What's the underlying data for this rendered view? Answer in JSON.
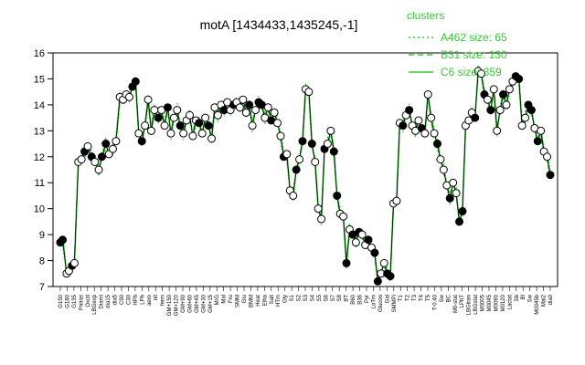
{
  "chart_data": {
    "type": "line",
    "title": "motA [1434433,1435245,-1]",
    "xlabel": "",
    "ylabel": "",
    "ylim": [
      7,
      16
    ],
    "yticks": [
      7,
      8,
      9,
      10,
      11,
      12,
      13,
      14,
      15,
      16
    ],
    "colors": {
      "series": "#33cc33",
      "points_open": "#ffffff",
      "points_filled": "#000000",
      "axis": "#000000"
    },
    "legend": {
      "title": "clusters",
      "position": "top-right",
      "entries": [
        {
          "label": "A462 size: 65",
          "style": "dotted"
        },
        {
          "label": "B31 size: 130",
          "style": "dashed"
        },
        {
          "label": "C6 size: 359",
          "style": "solid"
        }
      ]
    },
    "x_tick_labels": [
      "G150",
      "G180",
      "G135",
      "Pairas",
      "Oxctl",
      "LBGexp",
      "Diami",
      "dia15",
      "dia5",
      "C90",
      "C30",
      "HPh",
      "LPh",
      "aero",
      "nit",
      "ferm",
      "GM+150",
      "GM+120",
      "GM+90",
      "GM+60",
      "GM+45",
      "GM+30",
      "GM+15",
      "M/G",
      "Mal",
      "Fru",
      "SMM",
      "Glu",
      "BMM",
      "Heat",
      "Etha",
      "Salt",
      "HTm",
      "Gly",
      "S1",
      "S2",
      "S3",
      "S4",
      "S5",
      "S6",
      "S7",
      "S8",
      "BT",
      "B60",
      "B36",
      "Pyr",
      "LoTm",
      "Glucon",
      "Gal",
      "SMMPi",
      "T1",
      "T2",
      "T3",
      "T4",
      "T5",
      "T-0.40",
      "Sw",
      "BC",
      "M0-stat",
      "LPhT",
      "LBGtran",
      "LBGstat",
      "M0005",
      "M0045",
      "M0090",
      "M0120",
      "Lactat",
      "Sb",
      "Bl",
      "Sw",
      "M0045b",
      "Mal2",
      "dia0"
    ],
    "points": [
      {
        "x": 0,
        "y": 8.7,
        "filled": true
      },
      {
        "x": 0.3,
        "y": 8.8,
        "filled": true
      },
      {
        "x": 0.8,
        "y": 7.5,
        "filled": false
      },
      {
        "x": 1.1,
        "y": 7.6,
        "filled": false
      },
      {
        "x": 1.5,
        "y": 7.8,
        "filled": true
      },
      {
        "x": 1.8,
        "y": 7.9,
        "filled": false
      },
      {
        "x": 2.3,
        "y": 11.8,
        "filled": false
      },
      {
        "x": 2.7,
        "y": 11.9,
        "filled": false
      },
      {
        "x": 3.1,
        "y": 12.2,
        "filled": true
      },
      {
        "x": 3.5,
        "y": 12.4,
        "filled": false
      },
      {
        "x": 4.0,
        "y": 12.0,
        "filled": true
      },
      {
        "x": 4.4,
        "y": 11.8,
        "filled": false
      },
      {
        "x": 4.9,
        "y": 11.5,
        "filled": false
      },
      {
        "x": 5.3,
        "y": 12.0,
        "filled": true
      },
      {
        "x": 5.8,
        "y": 12.5,
        "filled": true
      },
      {
        "x": 6.2,
        "y": 12.1,
        "filled": false
      },
      {
        "x": 6.7,
        "y": 12.3,
        "filled": false
      },
      {
        "x": 7.1,
        "y": 12.6,
        "filled": false
      },
      {
        "x": 7.6,
        "y": 14.3,
        "filled": false
      },
      {
        "x": 8.0,
        "y": 14.2,
        "filled": false
      },
      {
        "x": 8.4,
        "y": 14.4,
        "filled": false
      },
      {
        "x": 8.8,
        "y": 14.3,
        "filled": false
      },
      {
        "x": 9.2,
        "y": 14.7,
        "filled": true
      },
      {
        "x": 9.6,
        "y": 14.9,
        "filled": true
      },
      {
        "x": 10.0,
        "y": 12.9,
        "filled": false
      },
      {
        "x": 10.4,
        "y": 12.6,
        "filled": true
      },
      {
        "x": 10.8,
        "y": 13.2,
        "filled": false
      },
      {
        "x": 11.2,
        "y": 14.2,
        "filled": false
      },
      {
        "x": 11.6,
        "y": 13.0,
        "filled": false
      },
      {
        "x": 12.0,
        "y": 13.8,
        "filled": false
      },
      {
        "x": 12.5,
        "y": 13.5,
        "filled": true
      },
      {
        "x": 12.9,
        "y": 13.8,
        "filled": false
      },
      {
        "x": 13.3,
        "y": 13.2,
        "filled": false
      },
      {
        "x": 13.7,
        "y": 13.9,
        "filled": true
      },
      {
        "x": 14.1,
        "y": 12.9,
        "filled": false
      },
      {
        "x": 14.5,
        "y": 13.5,
        "filled": false
      },
      {
        "x": 14.9,
        "y": 13.8,
        "filled": false
      },
      {
        "x": 15.3,
        "y": 13.2,
        "filled": true
      },
      {
        "x": 15.7,
        "y": 12.9,
        "filled": false
      },
      {
        "x": 16.1,
        "y": 13.4,
        "filled": false
      },
      {
        "x": 16.5,
        "y": 13.6,
        "filled": false
      },
      {
        "x": 16.9,
        "y": 12.8,
        "filled": false
      },
      {
        "x": 17.3,
        "y": 13.4,
        "filled": false
      },
      {
        "x": 17.7,
        "y": 13.3,
        "filled": true
      },
      {
        "x": 18.1,
        "y": 12.9,
        "filled": false
      },
      {
        "x": 18.5,
        "y": 13.5,
        "filled": false
      },
      {
        "x": 18.9,
        "y": 13.2,
        "filled": true
      },
      {
        "x": 19.3,
        "y": 12.7,
        "filled": false
      },
      {
        "x": 19.7,
        "y": 13.9,
        "filled": false
      },
      {
        "x": 20.1,
        "y": 13.6,
        "filled": false
      },
      {
        "x": 20.5,
        "y": 14.0,
        "filled": false
      },
      {
        "x": 20.9,
        "y": 13.8,
        "filled": true
      },
      {
        "x": 21.3,
        "y": 14.1,
        "filled": false
      },
      {
        "x": 21.7,
        "y": 13.8,
        "filled": false
      },
      {
        "x": 22.1,
        "y": 14.0,
        "filled": true
      },
      {
        "x": 22.5,
        "y": 14.1,
        "filled": false
      },
      {
        "x": 22.9,
        "y": 13.9,
        "filled": false
      },
      {
        "x": 23.3,
        "y": 14.2,
        "filled": false
      },
      {
        "x": 23.7,
        "y": 13.7,
        "filled": false
      },
      {
        "x": 24.1,
        "y": 14.0,
        "filled": true
      },
      {
        "x": 24.5,
        "y": 13.2,
        "filled": false
      },
      {
        "x": 24.9,
        "y": 13.8,
        "filled": false
      },
      {
        "x": 25.3,
        "y": 14.1,
        "filled": true
      },
      {
        "x": 25.7,
        "y": 14.0,
        "filled": true
      },
      {
        "x": 26.1,
        "y": 13.5,
        "filled": false
      },
      {
        "x": 26.5,
        "y": 13.9,
        "filled": false
      },
      {
        "x": 26.9,
        "y": 13.4,
        "filled": true
      },
      {
        "x": 27.3,
        "y": 13.7,
        "filled": false
      },
      {
        "x": 27.7,
        "y": 13.3,
        "filled": false
      },
      {
        "x": 28.1,
        "y": 12.8,
        "filled": false
      },
      {
        "x": 28.5,
        "y": 12.0,
        "filled": true
      },
      {
        "x": 28.9,
        "y": 12.1,
        "filled": false
      },
      {
        "x": 29.3,
        "y": 10.7,
        "filled": false
      },
      {
        "x": 29.7,
        "y": 10.5,
        "filled": false
      },
      {
        "x": 30.1,
        "y": 11.5,
        "filled": true
      },
      {
        "x": 30.5,
        "y": 11.9,
        "filled": false
      },
      {
        "x": 30.9,
        "y": 12.6,
        "filled": true
      },
      {
        "x": 31.3,
        "y": 14.6,
        "filled": false
      },
      {
        "x": 31.7,
        "y": 14.5,
        "filled": false
      },
      {
        "x": 32.1,
        "y": 12.5,
        "filled": true
      },
      {
        "x": 32.5,
        "y": 11.8,
        "filled": false
      },
      {
        "x": 32.9,
        "y": 10.0,
        "filled": false
      },
      {
        "x": 33.3,
        "y": 9.6,
        "filled": false
      },
      {
        "x": 33.7,
        "y": 12.3,
        "filled": true
      },
      {
        "x": 34.1,
        "y": 12.5,
        "filled": false
      },
      {
        "x": 34.5,
        "y": 13.0,
        "filled": false
      },
      {
        "x": 34.9,
        "y": 12.2,
        "filled": true
      },
      {
        "x": 35.3,
        "y": 10.5,
        "filled": true
      },
      {
        "x": 35.7,
        "y": 9.8,
        "filled": false
      },
      {
        "x": 36.1,
        "y": 9.7,
        "filled": false
      },
      {
        "x": 36.5,
        "y": 7.9,
        "filled": true
      },
      {
        "x": 36.9,
        "y": 9.2,
        "filled": false
      },
      {
        "x": 37.3,
        "y": 9.0,
        "filled": true
      },
      {
        "x": 37.7,
        "y": 8.7,
        "filled": false
      },
      {
        "x": 38.1,
        "y": 9.1,
        "filled": true
      },
      {
        "x": 38.5,
        "y": 9.0,
        "filled": false
      },
      {
        "x": 38.9,
        "y": 8.6,
        "filled": false
      },
      {
        "x": 39.3,
        "y": 8.8,
        "filled": true
      },
      {
        "x": 39.7,
        "y": 8.5,
        "filled": false
      },
      {
        "x": 40.1,
        "y": 8.3,
        "filled": true
      },
      {
        "x": 40.5,
        "y": 7.2,
        "filled": true
      },
      {
        "x": 40.9,
        "y": 7.5,
        "filled": false
      },
      {
        "x": 41.3,
        "y": 7.9,
        "filled": false
      },
      {
        "x": 41.7,
        "y": 7.5,
        "filled": true
      },
      {
        "x": 42.1,
        "y": 7.4,
        "filled": true
      },
      {
        "x": 42.5,
        "y": 10.2,
        "filled": false
      },
      {
        "x": 42.9,
        "y": 10.3,
        "filled": false
      },
      {
        "x": 43.3,
        "y": 13.3,
        "filled": false
      },
      {
        "x": 43.7,
        "y": 13.2,
        "filled": true
      },
      {
        "x": 44.1,
        "y": 13.6,
        "filled": false
      },
      {
        "x": 44.5,
        "y": 13.8,
        "filled": true
      },
      {
        "x": 44.9,
        "y": 13.2,
        "filled": false
      },
      {
        "x": 45.3,
        "y": 13.0,
        "filled": false
      },
      {
        "x": 45.7,
        "y": 13.4,
        "filled": false
      },
      {
        "x": 46.1,
        "y": 13.1,
        "filled": true
      },
      {
        "x": 46.5,
        "y": 12.9,
        "filled": false
      },
      {
        "x": 46.9,
        "y": 14.4,
        "filled": false
      },
      {
        "x": 47.3,
        "y": 13.5,
        "filled": false
      },
      {
        "x": 47.7,
        "y": 12.9,
        "filled": false
      },
      {
        "x": 48.1,
        "y": 12.5,
        "filled": true
      },
      {
        "x": 48.5,
        "y": 11.9,
        "filled": false
      },
      {
        "x": 48.9,
        "y": 11.5,
        "filled": false
      },
      {
        "x": 49.3,
        "y": 10.9,
        "filled": false
      },
      {
        "x": 49.7,
        "y": 10.4,
        "filled": true
      },
      {
        "x": 50.1,
        "y": 11.0,
        "filled": false
      },
      {
        "x": 50.5,
        "y": 10.6,
        "filled": false
      },
      {
        "x": 50.9,
        "y": 9.5,
        "filled": true
      },
      {
        "x": 51.3,
        "y": 9.9,
        "filled": true
      },
      {
        "x": 51.7,
        "y": 13.2,
        "filled": false
      },
      {
        "x": 52.1,
        "y": 13.4,
        "filled": false
      },
      {
        "x": 52.5,
        "y": 13.7,
        "filled": false
      },
      {
        "x": 52.9,
        "y": 13.5,
        "filled": true
      },
      {
        "x": 53.3,
        "y": 15.3,
        "filled": false
      },
      {
        "x": 53.7,
        "y": 15.2,
        "filled": false
      },
      {
        "x": 54.1,
        "y": 14.4,
        "filled": true
      },
      {
        "x": 54.5,
        "y": 14.2,
        "filled": false
      },
      {
        "x": 54.9,
        "y": 13.8,
        "filled": true
      },
      {
        "x": 55.3,
        "y": 14.6,
        "filled": false
      },
      {
        "x": 55.7,
        "y": 13.0,
        "filled": false
      },
      {
        "x": 56.1,
        "y": 13.8,
        "filled": false
      },
      {
        "x": 56.5,
        "y": 14.4,
        "filled": true
      },
      {
        "x": 56.9,
        "y": 14.0,
        "filled": false
      },
      {
        "x": 57.3,
        "y": 14.6,
        "filled": false
      },
      {
        "x": 57.7,
        "y": 14.9,
        "filled": false
      },
      {
        "x": 58.1,
        "y": 15.1,
        "filled": true
      },
      {
        "x": 58.5,
        "y": 15.0,
        "filled": true
      },
      {
        "x": 58.9,
        "y": 13.2,
        "filled": false
      },
      {
        "x": 59.3,
        "y": 13.5,
        "filled": false
      },
      {
        "x": 59.7,
        "y": 14.0,
        "filled": true
      },
      {
        "x": 60.1,
        "y": 13.8,
        "filled": true
      },
      {
        "x": 60.5,
        "y": 13.1,
        "filled": false
      },
      {
        "x": 60.9,
        "y": 12.6,
        "filled": true
      },
      {
        "x": 61.3,
        "y": 13.0,
        "filled": false
      },
      {
        "x": 61.7,
        "y": 12.2,
        "filled": false
      },
      {
        "x": 62.1,
        "y": 12.0,
        "filled": false
      },
      {
        "x": 62.5,
        "y": 11.3,
        "filled": true
      }
    ]
  }
}
